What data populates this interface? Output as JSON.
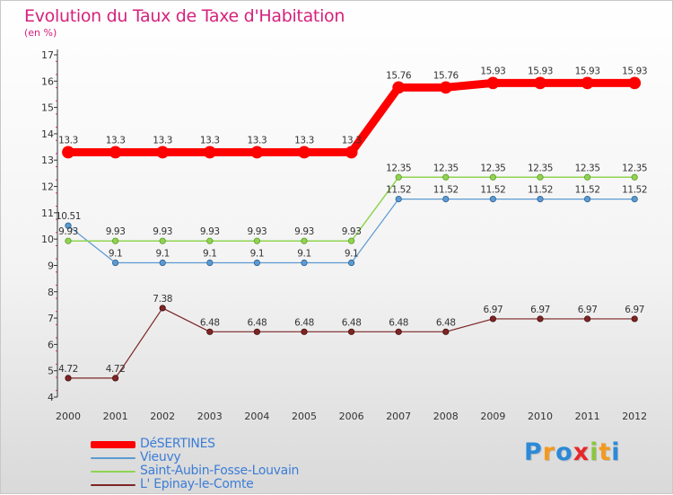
{
  "header": {
    "title": "Evolution du Taux de Taxe d'Habitation",
    "subtitle": "(en %)"
  },
  "chart_data": {
    "type": "line",
    "title": "Evolution du Taux de Taxe d'Habitation",
    "ylabel": "(en %)",
    "xlabel": "",
    "ylim": [
      4,
      17
    ],
    "yticks": [
      "4",
      "5",
      "6",
      "7",
      "8",
      "9",
      "10",
      "11",
      "12",
      "13",
      "14",
      "15",
      "16",
      "17"
    ],
    "x": [
      "2000",
      "2001",
      "2002",
      "2003",
      "2004",
      "2005",
      "2006",
      "2007",
      "2008",
      "2009",
      "2010",
      "2011",
      "2012"
    ],
    "series": [
      {
        "name": "DéSERTINES",
        "color": "#ff0000",
        "values": [
          13.3,
          13.3,
          13.3,
          13.3,
          13.3,
          13.3,
          13.3,
          15.76,
          15.76,
          15.93,
          15.93,
          15.93,
          15.93
        ],
        "labels": [
          "13.3",
          "13.3",
          "13.3",
          "13.3",
          "13.3",
          "13.3",
          "13.3",
          "15.76",
          "15.76",
          "15.93",
          "15.93",
          "15.93",
          "15.93"
        ]
      },
      {
        "name": "Vieuvy",
        "color": "#5c9ad2",
        "values": [
          10.51,
          9.1,
          9.1,
          9.1,
          9.1,
          9.1,
          9.1,
          11.52,
          11.52,
          11.52,
          11.52,
          11.52,
          11.52
        ],
        "labels": [
          "10.51",
          "9.1",
          "9.1",
          "9.1",
          "9.1",
          "9.1",
          "9.1",
          "11.52",
          "11.52",
          "11.52",
          "11.52",
          "11.52",
          "11.52"
        ]
      },
      {
        "name": "Saint-Aubin-Fosse-Louvain",
        "color": "#8fd451",
        "values": [
          9.93,
          9.93,
          9.93,
          9.93,
          9.93,
          9.93,
          9.93,
          12.35,
          12.35,
          12.35,
          12.35,
          12.35,
          12.35
        ],
        "labels": [
          "9.93",
          "9.93",
          "9.93",
          "9.93",
          "9.93",
          "9.93",
          "9.93",
          "12.35",
          "12.35",
          "12.35",
          "12.35",
          "12.35",
          "12.35"
        ]
      },
      {
        "name": "L' Epinay-le-Comte",
        "color": "#7d2525",
        "values": [
          4.72,
          4.72,
          7.38,
          6.48,
          6.48,
          6.48,
          6.48,
          6.48,
          6.48,
          6.97,
          6.97,
          6.97,
          6.97
        ],
        "labels": [
          "4.72",
          "4.72",
          "7.38",
          "6.48",
          "6.48",
          "6.48",
          "6.48",
          "6.48",
          "6.48",
          "6.97",
          "6.97",
          "6.97",
          "6.97"
        ]
      }
    ],
    "legend_position": "bottom-left"
  },
  "legend": {
    "items": [
      {
        "label": "DéSERTINES",
        "color": "#ff0000"
      },
      {
        "label": "Vieuvy",
        "color": "#5c9ad2"
      },
      {
        "label": "Saint-Aubin-Fosse-Louvain",
        "color": "#8fd451"
      },
      {
        "label": "L' Epinay-le-Comte",
        "color": "#7d2525"
      }
    ]
  },
  "logo": {
    "letters": [
      "P",
      "r",
      "o",
      "x",
      "i",
      "t",
      "i"
    ],
    "colors": [
      "#2b8ad8",
      "#f39a1c",
      "#2b8ad8",
      "#e8272a",
      "#8dc63f",
      "#f39a1c",
      "#2b8ad8"
    ]
  }
}
